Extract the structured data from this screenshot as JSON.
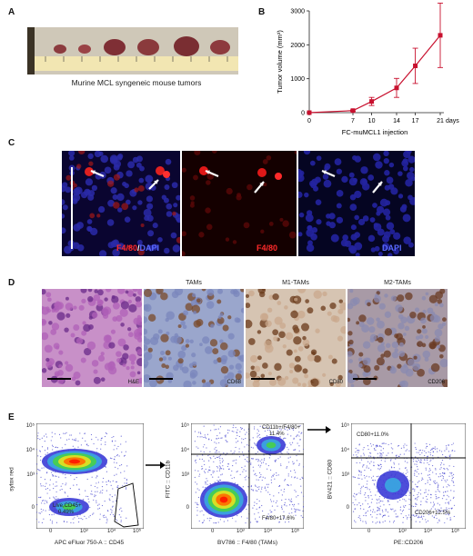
{
  "panels": {
    "a": {
      "label": "A",
      "caption": "Murine MCL syngeneic mouse tumors"
    },
    "b": {
      "label": "B"
    },
    "c": {
      "label": "C",
      "stain_merge_a": "F4/80",
      "stain_merge_sep": "/",
      "stain_merge_b": "DAPI",
      "stain_red": "F4/80",
      "stain_blue": "DAPI"
    },
    "d": {
      "label": "D",
      "titles": [
        "TAMs",
        "M1-TAMs",
        "M2-TAMs"
      ],
      "stains": [
        "H&E",
        "CD68",
        "CD80",
        "CD206"
      ]
    },
    "e": {
      "label": "E",
      "plot1": {
        "ylabel": "sytox red",
        "xlabel": "APC eFluor 750-A :: CD45",
        "gate_label": "Live,CD45+",
        "gate_value": "0.49%"
      },
      "plot2": {
        "ylabel": "FITC :: CD11b",
        "xlabel": "BV786 :: F4/80 (TAMs)",
        "gate_top": "CD11b+/F4/80+",
        "gate_top_value": "11.4%",
        "gate_bottom": "F4/80+17.6%"
      },
      "plot3": {
        "ylabel": "BV421 :: CD80",
        "xlabel": "PE::CD206",
        "gate_top": "CD80+11.0%",
        "gate_bottom": "CD206+12.5%"
      },
      "ticks_x": [
        "0",
        "10³",
        "10⁴",
        "10⁵"
      ],
      "ticks_y": [
        "0",
        "10³",
        "10⁴",
        "10⁵"
      ]
    }
  },
  "chart_data": {
    "type": "line",
    "x": [
      0,
      7,
      10,
      14,
      17,
      21
    ],
    "series": [
      {
        "values": [
          0,
          60,
          330,
          730,
          1380,
          2280
        ],
        "error": [
          0,
          20,
          120,
          280,
          520,
          950
        ]
      }
    ],
    "xlabel": "FC-muMCL1 injection",
    "xunit": "days",
    "ylabel": "Tumor volume (mm³)",
    "ylim": [
      0,
      3000
    ],
    "yticks": [
      0,
      1000,
      2000,
      3000
    ],
    "color": "#c8102e",
    "grid": false
  },
  "colors": {
    "accent": "#c8102e",
    "flow_hot": "#ff2a00",
    "flow_mid": "#44cc44",
    "flow_low": "#3a3acc"
  }
}
